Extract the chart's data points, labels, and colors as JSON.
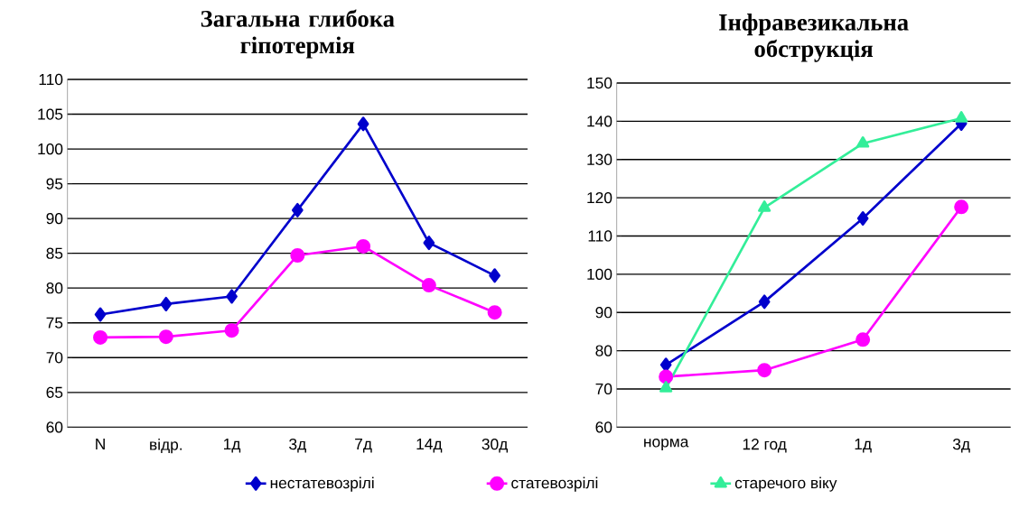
{
  "chart_data": [
    {
      "type": "line",
      "title": "Загальна глибока гіпотермія",
      "categories": [
        "N",
        "відр.",
        "1д",
        "3д",
        "7д",
        "14д",
        "30д"
      ],
      "series": [
        {
          "color": "#0000cc",
          "marker": "diamond",
          "values": [
            76.2,
            77.7,
            78.8,
            91.2,
            103.6,
            86.5,
            81.8
          ]
        },
        {
          "color": "#ff00ff",
          "marker": "circle",
          "values": [
            72.9,
            73.0,
            73.9,
            84.7,
            86.0,
            80.4,
            76.5
          ]
        }
      ],
      "ylim": [
        60,
        110
      ],
      "yticks": [
        60,
        65,
        70,
        75,
        80,
        85,
        90,
        95,
        100,
        105,
        110
      ],
      "grid": "y",
      "legend": false
    },
    {
      "type": "line",
      "title": "Інфравезикальна обструкція",
      "categories": [
        "норма",
        "12 год",
        "1д",
        "3д"
      ],
      "series": [
        {
          "name": "нестатевозрілі",
          "color": "#0000cc",
          "marker": "diamond",
          "values": [
            76.3,
            92.8,
            114.6,
            139.4
          ]
        },
        {
          "name": "статевозрілі",
          "color": "#ff00ff",
          "marker": "circle",
          "values": [
            73.2,
            74.9,
            82.9,
            117.6
          ]
        },
        {
          "name": "старечого віку",
          "color": "#33ee99",
          "marker": "triangle",
          "values": [
            70.2,
            117.4,
            134.2,
            140.8
          ]
        }
      ],
      "ylim": [
        60,
        150
      ],
      "yticks": [
        60,
        70,
        80,
        90,
        100,
        110,
        120,
        130,
        140,
        150
      ],
      "grid": "y",
      "legend": "bottom"
    }
  ]
}
